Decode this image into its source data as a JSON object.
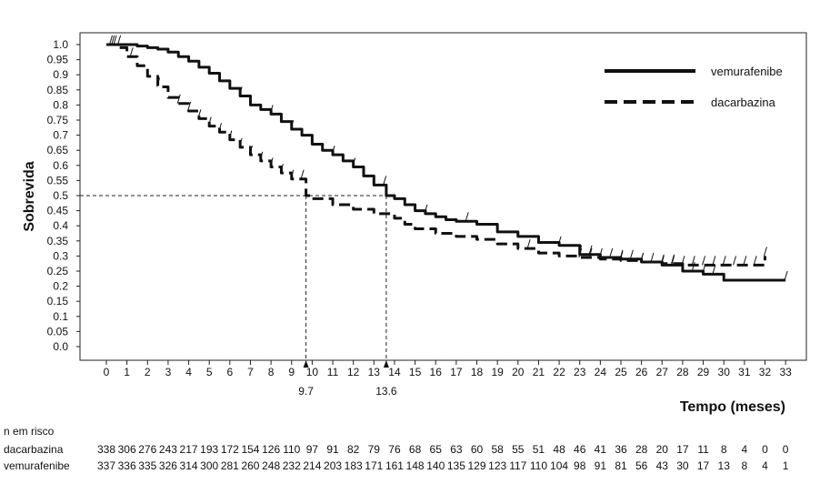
{
  "chart_data": {
    "type": "line",
    "xlabel": "Tempo (meses)",
    "ylabel": "Sobrevida",
    "xlim": [
      0,
      33
    ],
    "ylim": [
      0,
      1.0
    ],
    "xticks": [
      0,
      1,
      2,
      3,
      4,
      5,
      6,
      7,
      8,
      9,
      10,
      11,
      12,
      13,
      14,
      15,
      16,
      17,
      18,
      19,
      20,
      21,
      22,
      23,
      24,
      25,
      26,
      27,
      28,
      29,
      30,
      31,
      32,
      33
    ],
    "yticks": [
      0.0,
      0.05,
      0.1,
      0.15,
      0.2,
      0.25,
      0.3,
      0.35,
      0.4,
      0.45,
      0.5,
      0.55,
      0.6,
      0.65,
      0.7,
      0.75,
      0.8,
      0.85,
      0.9,
      0.95,
      1.0
    ],
    "ytick_labels": [
      "0.0",
      "0.05",
      "0.1",
      "0.15",
      "0.2",
      "0.25",
      "0.3",
      "0.35",
      "0.4",
      "0.45",
      "0.5",
      "0.55",
      "0.6",
      "0.65",
      "0.7",
      "0.75",
      "0.8",
      "0.85",
      "0.9",
      "0.95",
      "1.0"
    ],
    "legend_position": "top-right",
    "grid": false,
    "series": [
      {
        "name": "vemurafenibe",
        "style": "solid",
        "x": [
          0,
          0.5,
          1,
          1.5,
          2,
          2.5,
          3,
          3.5,
          4,
          4.5,
          5,
          5.5,
          6,
          6.5,
          7,
          7.5,
          8,
          8.5,
          9,
          9.5,
          10,
          10.5,
          11,
          11.5,
          12,
          12.5,
          13,
          13.6,
          14,
          14.5,
          15,
          15.5,
          16,
          16.5,
          17,
          18,
          19,
          20,
          21,
          22,
          23,
          24,
          25,
          26,
          27,
          28,
          29,
          30,
          31,
          32,
          33
        ],
        "y": [
          1.0,
          1.0,
          1.0,
          0.995,
          0.99,
          0.985,
          0.975,
          0.96,
          0.945,
          0.925,
          0.905,
          0.88,
          0.855,
          0.83,
          0.8,
          0.785,
          0.77,
          0.745,
          0.72,
          0.7,
          0.67,
          0.65,
          0.635,
          0.615,
          0.595,
          0.565,
          0.535,
          0.5,
          0.49,
          0.47,
          0.45,
          0.44,
          0.43,
          0.42,
          0.415,
          0.405,
          0.38,
          0.365,
          0.345,
          0.335,
          0.305,
          0.295,
          0.29,
          0.28,
          0.27,
          0.25,
          0.24,
          0.22,
          0.22,
          0.22,
          0.22
        ],
        "censor_x": [
          0.2,
          0.4,
          0.6,
          6.5,
          8,
          9,
          11,
          12,
          13.5,
          15.5,
          17.5,
          22,
          23,
          23.5,
          24,
          24.5,
          25,
          25.5,
          26,
          26.5,
          27,
          27.5,
          28.5,
          29,
          29.5,
          33
        ]
      },
      {
        "name": "dacarbazina",
        "style": "dashed",
        "x": [
          0,
          0.5,
          1,
          1.5,
          2,
          2.5,
          3,
          3.5,
          4,
          4.5,
          5,
          5.5,
          6,
          6.5,
          7,
          7.5,
          8,
          8.5,
          9,
          9.7,
          10,
          11,
          12,
          13,
          14,
          14.5,
          15,
          16,
          17,
          18,
          19,
          20,
          21,
          22,
          23,
          24,
          25,
          26,
          27,
          28,
          29,
          30,
          31,
          32
        ],
        "y": [
          1.0,
          0.99,
          0.96,
          0.93,
          0.895,
          0.86,
          0.825,
          0.805,
          0.78,
          0.755,
          0.73,
          0.71,
          0.685,
          0.66,
          0.635,
          0.615,
          0.595,
          0.575,
          0.555,
          0.5,
          0.49,
          0.47,
          0.455,
          0.44,
          0.425,
          0.405,
          0.39,
          0.375,
          0.365,
          0.355,
          0.34,
          0.325,
          0.31,
          0.3,
          0.295,
          0.29,
          0.285,
          0.28,
          0.275,
          0.27,
          0.27,
          0.27,
          0.27,
          0.3
        ],
        "censor_x": [
          0.3,
          1.2,
          2.5,
          3.5,
          4,
          4.5,
          5,
          5.5,
          6,
          6.5,
          7,
          7.5,
          8,
          8.5,
          9,
          9.5,
          20.5,
          23,
          23.5,
          25,
          26,
          27,
          27.5,
          28,
          28.5,
          29,
          29.5,
          30,
          30.5,
          31,
          31.5,
          32
        ]
      }
    ],
    "annotations": [
      {
        "text": "9.7",
        "x": 9.7,
        "y": 0.5
      },
      {
        "text": "13.6",
        "x": 13.6,
        "y": 0.5
      }
    ],
    "risk_table": {
      "title": "n em risco",
      "rows": [
        {
          "name": "dacarbazina",
          "values": [
            "338",
            "306",
            "276",
            "243",
            "217",
            "193",
            "172",
            "154",
            "126",
            "110",
            "97",
            "91",
            "82",
            "79",
            "76",
            "68",
            "65",
            "63",
            "60",
            "58",
            "55",
            "51",
            "48",
            "46",
            "41",
            "36",
            "28",
            "20",
            "17",
            "11",
            "8",
            "4",
            "0",
            "0"
          ]
        },
        {
          "name": "vemurafenibe",
          "values": [
            "337",
            "336",
            "335",
            "326",
            "314",
            "300",
            "281",
            "260",
            "248",
            "232",
            "214",
            "203",
            "183",
            "171",
            "161",
            "148",
            "140",
            "135",
            "129",
            "123",
            "117",
            "110",
            "104",
            "98",
            "91",
            "81",
            "56",
            "43",
            "30",
            "17",
            "13",
            "8",
            "4",
            "1"
          ]
        }
      ]
    }
  }
}
